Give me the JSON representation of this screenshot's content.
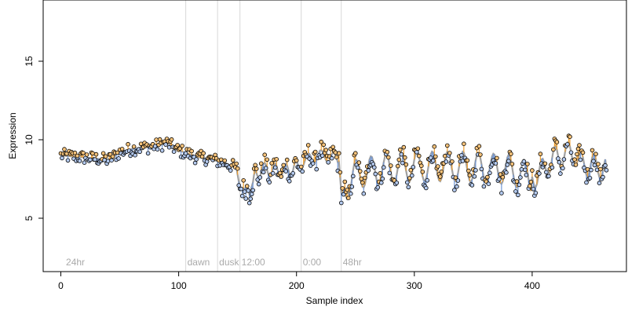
{
  "chart_data": {
    "type": "scatter",
    "title": "",
    "xlabel": "Sample index",
    "ylabel": "Expression",
    "xlim": [
      -15,
      480
    ],
    "ylim": [
      1.6,
      18.9
    ],
    "x_ticks": [
      0,
      100,
      200,
      300,
      400
    ],
    "y_ticks": [
      5,
      10,
      15
    ],
    "grid": false,
    "legend": "none",
    "colors": {
      "point_high": "#f5c27a",
      "point_low": "#b3c9ee",
      "point_edge": "#000000",
      "seg_high": "#f0a030",
      "seg_low": "#6f96d6",
      "smooth": "#a0a0a0",
      "vline": "#d8d8d8",
      "annotation": "#aaaaaa"
    },
    "annotations": [
      {
        "label": "24hr",
        "x": 3
      },
      {
        "label": "dawn",
        "x": 106
      },
      {
        "label": "dusk",
        "x": 133
      },
      {
        "label": "12:00",
        "x": 152
      },
      {
        "label": "0:00",
        "x": 204
      },
      {
        "label": "48hr",
        "x": 238
      }
    ],
    "vlines": [
      106,
      133,
      152,
      204,
      238
    ],
    "baseline": [
      [
        0,
        9.0
      ],
      [
        30,
        8.8
      ],
      [
        40,
        8.7
      ],
      [
        50,
        9.2
      ],
      [
        60,
        9.4
      ],
      [
        80,
        9.6
      ],
      [
        90,
        9.8
      ],
      [
        100,
        9.3
      ],
      [
        105,
        9.2
      ],
      [
        115,
        8.9
      ],
      [
        125,
        8.8
      ],
      [
        140,
        8.5
      ],
      [
        149,
        8.2
      ],
      [
        152,
        6.9
      ],
      [
        163,
        6.9
      ],
      [
        165,
        7.8
      ],
      [
        170,
        8.1
      ],
      [
        190,
        8.0
      ],
      [
        200,
        8.3
      ],
      [
        210,
        8.8
      ],
      [
        220,
        9.0
      ],
      [
        230,
        8.9
      ],
      [
        236,
        8.6
      ],
      [
        238,
        6.6
      ],
      [
        242,
        7.0
      ],
      [
        250,
        7.8
      ],
      [
        270,
        8.1
      ],
      [
        300,
        8.3
      ],
      [
        340,
        8.3
      ],
      [
        380,
        8.1
      ],
      [
        400,
        7.6
      ],
      [
        405,
        7.8
      ],
      [
        420,
        8.9
      ],
      [
        435,
        9.2
      ],
      [
        440,
        8.5
      ],
      [
        463,
        8.2
      ]
    ],
    "waves": [
      {
        "from": 160,
        "to": 200,
        "amp": 0.45,
        "period": 9,
        "phase": 0.3
      },
      {
        "from": 200,
        "to": 236,
        "amp": 0.35,
        "period": 11,
        "phase": 1.1
      },
      {
        "from": 242,
        "to": 400,
        "amp": 0.95,
        "period": 13,
        "phase": 0.0
      },
      {
        "from": 400,
        "to": 463,
        "amp": 0.75,
        "period": 11,
        "phase": 0.8
      }
    ],
    "noise": [
      {
        "from": 0,
        "to": 150,
        "amp": 0.35
      },
      {
        "from": 150,
        "to": 165,
        "amp": 0.55
      },
      {
        "from": 165,
        "to": 463,
        "amp": 0.55
      }
    ],
    "n_points": 464
  }
}
